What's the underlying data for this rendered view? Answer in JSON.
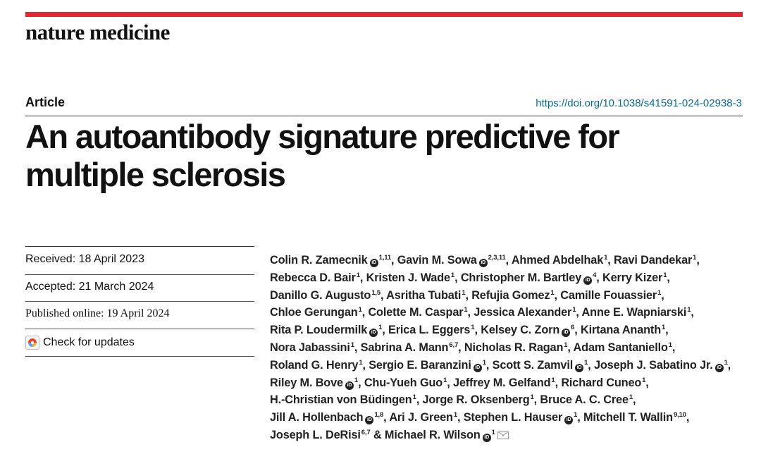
{
  "journal": {
    "name": "nature medicine"
  },
  "article": {
    "type": "Article",
    "doi": "https://doi.org/10.1038/s41591-024-02938-3",
    "title": "An autoantibody signature predictive for multiple sclerosis"
  },
  "meta": {
    "received": "Received: 18 April 2023",
    "accepted": "Accepted: 21 March 2024",
    "published": "Published online: 19 April 2024",
    "check_updates": "Check for updates"
  },
  "authors": [
    {
      "name": "Colin R. Zamecnik",
      "orcid": true,
      "aff": "1,11",
      "sep": ", "
    },
    {
      "name": "Gavin M. Sowa",
      "orcid": true,
      "aff": "2,3,11",
      "sep": ", "
    },
    {
      "name": "Ahmed Abdelhak",
      "orcid": false,
      "aff": "1",
      "sep": ", "
    },
    {
      "name": "Ravi Dandekar",
      "orcid": false,
      "aff": "1",
      "sep": ", "
    },
    {
      "name": "Rebecca D. Bair",
      "orcid": false,
      "aff": "1",
      "sep": ", "
    },
    {
      "name": "Kristen J. Wade",
      "orcid": false,
      "aff": "1",
      "sep": ", "
    },
    {
      "name": "Christopher M. Bartley",
      "orcid": true,
      "aff": "4",
      "sep": ", "
    },
    {
      "name": "Kerry Kizer",
      "orcid": false,
      "aff": "1",
      "sep": ", "
    },
    {
      "name": "Danillo G. Augusto",
      "orcid": false,
      "aff": "1,5",
      "sep": ", "
    },
    {
      "name": "Asritha Tubati",
      "orcid": false,
      "aff": "1",
      "sep": ", "
    },
    {
      "name": "Refujia Gomez",
      "orcid": false,
      "aff": "1",
      "sep": ", "
    },
    {
      "name": "Camille Fouassier",
      "orcid": false,
      "aff": "1",
      "sep": ", "
    },
    {
      "name": "Chloe Gerungan",
      "orcid": false,
      "aff": "1",
      "sep": ", "
    },
    {
      "name": "Colette M. Caspar",
      "orcid": false,
      "aff": "1",
      "sep": ", "
    },
    {
      "name": "Jessica Alexander",
      "orcid": false,
      "aff": "1",
      "sep": ", "
    },
    {
      "name": "Anne E. Wapniarski",
      "orcid": false,
      "aff": "1",
      "sep": ", "
    },
    {
      "name": "Rita P. Loudermilk",
      "orcid": true,
      "aff": "1",
      "sep": ", "
    },
    {
      "name": "Erica L. Eggers",
      "orcid": false,
      "aff": "1",
      "sep": ", "
    },
    {
      "name": "Kelsey C. Zorn",
      "orcid": true,
      "aff": "6",
      "sep": ", "
    },
    {
      "name": "Kirtana Ananth",
      "orcid": false,
      "aff": "1",
      "sep": ", "
    },
    {
      "name": "Nora Jabassini",
      "orcid": false,
      "aff": "1",
      "sep": ", "
    },
    {
      "name": "Sabrina A. Mann",
      "orcid": false,
      "aff": "6,7",
      "sep": ", "
    },
    {
      "name": "Nicholas R. Ragan",
      "orcid": false,
      "aff": "1",
      "sep": ", "
    },
    {
      "name": "Adam Santaniello",
      "orcid": false,
      "aff": "1",
      "sep": ", "
    },
    {
      "name": "Roland G. Henry",
      "orcid": false,
      "aff": "1",
      "sep": ", "
    },
    {
      "name": "Sergio E. Baranzini",
      "orcid": true,
      "aff": "1",
      "sep": ", "
    },
    {
      "name": "Scott S. Zamvil",
      "orcid": true,
      "aff": "1",
      "sep": ", "
    },
    {
      "name": "Joseph J. Sabatino Jr.",
      "orcid": true,
      "aff": "1",
      "sep": ", "
    },
    {
      "name": "Riley M. Bove",
      "orcid": true,
      "aff": "1",
      "sep": ", "
    },
    {
      "name": "Chu-Yueh Guo",
      "orcid": false,
      "aff": "1",
      "sep": ", "
    },
    {
      "name": "Jeffrey M. Gelfand",
      "orcid": false,
      "aff": "1",
      "sep": ", "
    },
    {
      "name": "Richard Cuneo",
      "orcid": false,
      "aff": "1",
      "sep": ", "
    },
    {
      "name": "H.-Christian von Büdingen",
      "orcid": false,
      "aff": "1",
      "sep": ", "
    },
    {
      "name": "Jorge R. Oksenberg",
      "orcid": false,
      "aff": "1",
      "sep": ", "
    },
    {
      "name": "Bruce A. C. Cree",
      "orcid": false,
      "aff": "1",
      "sep": ", "
    },
    {
      "name": "Jill A. Hollenbach",
      "orcid": true,
      "aff": "1,8",
      "sep": ", "
    },
    {
      "name": "Ari J. Green",
      "orcid": false,
      "aff": "1",
      "sep": ", "
    },
    {
      "name": "Stephen L. Hauser",
      "orcid": true,
      "aff": "1",
      "sep": ", "
    },
    {
      "name": "Mitchell T. Wallin",
      "orcid": false,
      "aff": "9,10",
      "sep": ", "
    },
    {
      "name": "Joseph L. DeRisi",
      "orcid": false,
      "aff": "6,7",
      "sep": " & "
    },
    {
      "name": "Michael R. Wilson",
      "orcid": true,
      "aff": "1",
      "sep": "",
      "email": true
    }
  ],
  "icons": {
    "orcid_glyph": "iD",
    "colors": {
      "accent": "#e02933",
      "link": "#0b6a99"
    }
  }
}
